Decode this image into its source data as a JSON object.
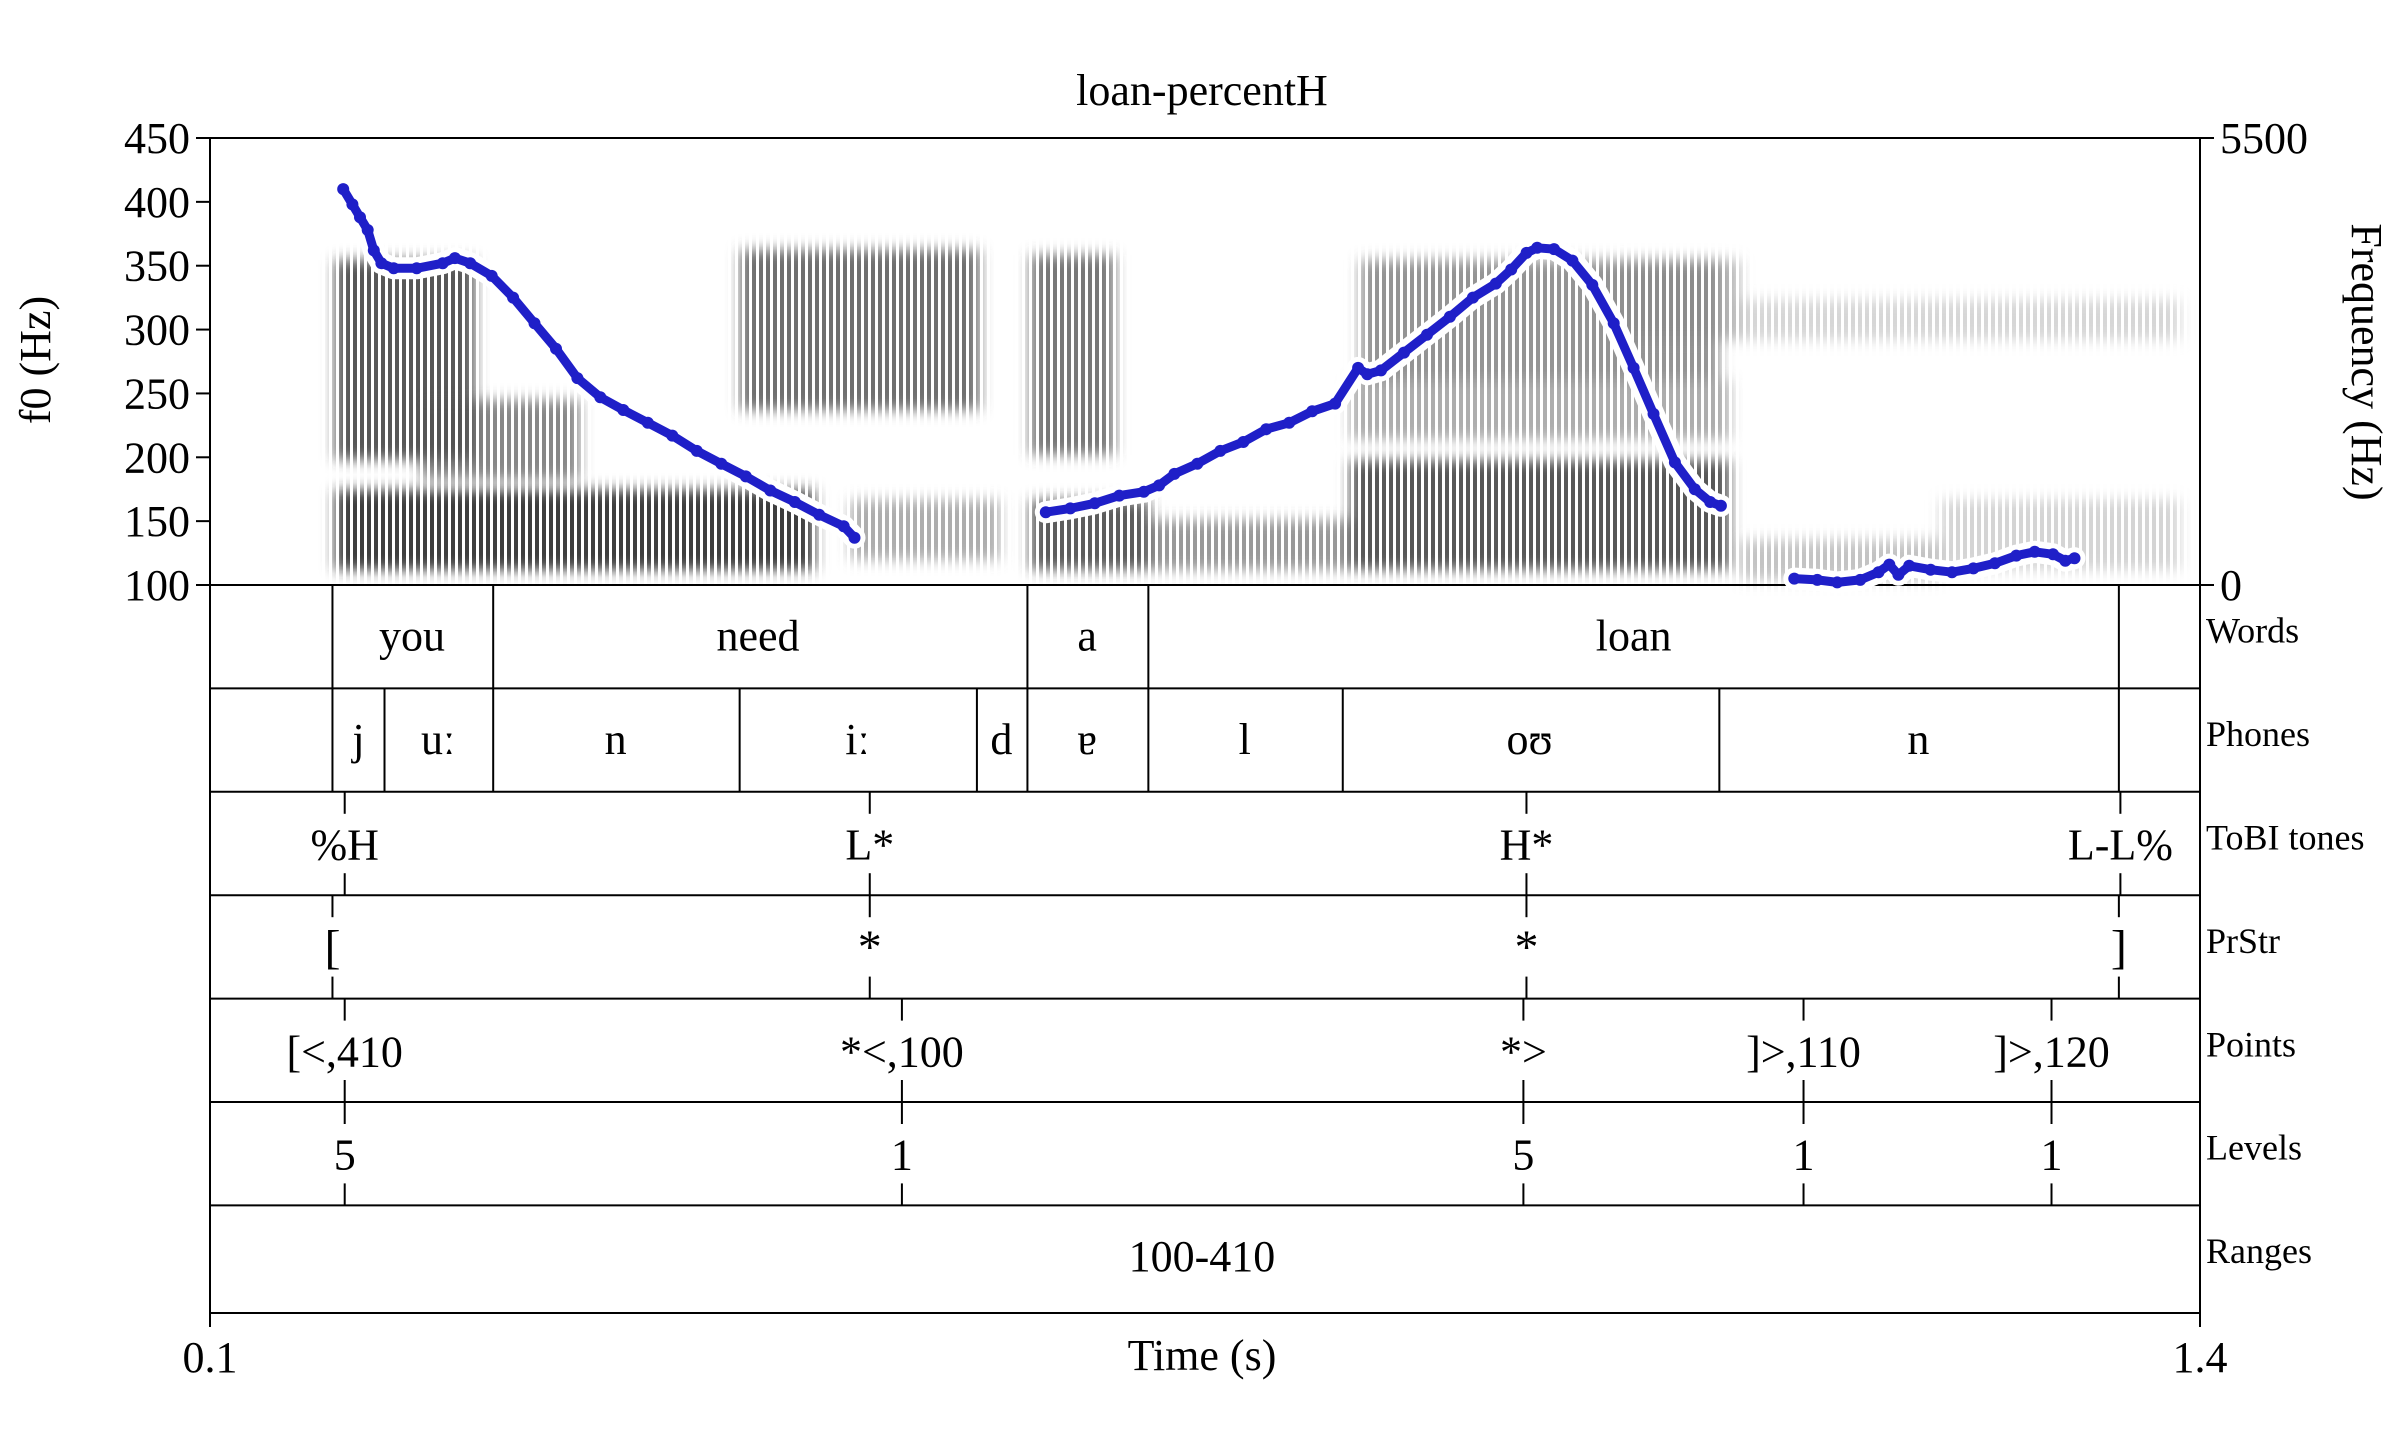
{
  "chart_data": {
    "type": "line",
    "title": "loan-percentH",
    "xlabel": "Time (s)",
    "ylabel_left": "f0 (Hz)",
    "ylabel_right": "Frequency (Hz)",
    "xlim": [
      0.1,
      1.4
    ],
    "xticks": [
      "0.1",
      "1.4"
    ],
    "ylim_f0": [
      100,
      450
    ],
    "yticks_f0": [
      100,
      150,
      200,
      250,
      300,
      350,
      400,
      450
    ],
    "ylim_freq": [
      0,
      5500
    ],
    "yticks_freq": [
      "0",
      "5500"
    ],
    "series": [
      {
        "name": "f0",
        "color": "#1f1fc8",
        "segments": [
          [
            [
              0.187,
              410
            ],
            [
              0.193,
              398
            ],
            [
              0.198,
              388
            ],
            [
              0.203,
              378
            ],
            [
              0.207,
              362
            ],
            [
              0.212,
              352
            ],
            [
              0.22,
              348
            ],
            [
              0.235,
              348
            ],
            [
              0.252,
              352
            ],
            [
              0.26,
              356
            ],
            [
              0.27,
              352
            ],
            [
              0.284,
              342
            ],
            [
              0.298,
              325
            ],
            [
              0.312,
              305
            ],
            [
              0.326,
              285
            ],
            [
              0.34,
              262
            ],
            [
              0.355,
              247
            ],
            [
              0.37,
              237
            ],
            [
              0.386,
              227
            ],
            [
              0.402,
              217
            ],
            [
              0.418,
              205
            ],
            [
              0.434,
              195
            ],
            [
              0.45,
              185
            ],
            [
              0.466,
              174
            ],
            [
              0.482,
              165
            ],
            [
              0.498,
              155
            ],
            [
              0.514,
              146
            ],
            [
              0.521,
              137
            ]
          ],
          [
            [
              0.646,
              157
            ],
            [
              0.662,
              160
            ],
            [
              0.678,
              164
            ],
            [
              0.694,
              170
            ],
            [
              0.71,
              173
            ],
            [
              0.72,
              178
            ],
            [
              0.73,
              187
            ],
            [
              0.745,
              195
            ],
            [
              0.76,
              205
            ],
            [
              0.775,
              212
            ],
            [
              0.79,
              222
            ],
            [
              0.805,
              227
            ],
            [
              0.82,
              236
            ],
            [
              0.835,
              242
            ],
            [
              0.85,
              270
            ],
            [
              0.856,
              265
            ],
            [
              0.865,
              268
            ],
            [
              0.88,
              282
            ],
            [
              0.895,
              296
            ],
            [
              0.91,
              310
            ],
            [
              0.925,
              325
            ],
            [
              0.94,
              336
            ],
            [
              0.95,
              347
            ],
            [
              0.96,
              360
            ],
            [
              0.967,
              364
            ],
            [
              0.978,
              363
            ],
            [
              0.99,
              354
            ],
            [
              1.003,
              335
            ],
            [
              1.017,
              305
            ],
            [
              1.03,
              270
            ],
            [
              1.043,
              234
            ],
            [
              1.057,
              196
            ],
            [
              1.07,
              175
            ],
            [
              1.08,
              165
            ],
            [
              1.087,
              162
            ]
          ],
          [
            [
              1.135,
              105
            ],
            [
              1.15,
              104
            ],
            [
              1.163,
              102
            ],
            [
              1.178,
              104
            ],
            [
              1.19,
              110
            ],
            [
              1.197,
              116
            ],
            [
              1.203,
              108
            ],
            [
              1.21,
              115
            ],
            [
              1.224,
              112
            ],
            [
              1.238,
              110
            ],
            [
              1.252,
              113
            ],
            [
              1.266,
              117
            ],
            [
              1.28,
              123
            ],
            [
              1.292,
              126
            ],
            [
              1.304,
              124
            ],
            [
              1.312,
              119
            ],
            [
              1.318,
              121
            ]
          ]
        ]
      }
    ],
    "tiers": [
      {
        "name": "Words",
        "kind": "interval",
        "bounds": [
          0.18,
          0.285,
          0.634,
          0.713,
          1.347
        ],
        "labels": [
          {
            "t": 0.232,
            "text": "you"
          },
          {
            "t": 0.458,
            "text": "need"
          },
          {
            "t": 0.673,
            "text": "a"
          },
          {
            "t": 1.03,
            "text": "loan"
          }
        ]
      },
      {
        "name": "Phones",
        "kind": "interval",
        "bounds": [
          0.18,
          0.214,
          0.285,
          0.446,
          0.601,
          0.634,
          0.713,
          0.84,
          1.086,
          1.347
        ],
        "labels": [
          {
            "t": 0.197,
            "text": "j"
          },
          {
            "t": 0.249,
            "text": "uː"
          },
          {
            "t": 0.365,
            "text": "n"
          },
          {
            "t": 0.523,
            "text": "iː"
          },
          {
            "t": 0.617,
            "text": "d"
          },
          {
            "t": 0.673,
            "text": "ɐ"
          },
          {
            "t": 0.776,
            "text": "l"
          },
          {
            "t": 0.962,
            "text": "oʊ"
          },
          {
            "t": 1.216,
            "text": "n"
          }
        ]
      },
      {
        "name": "ToBI tones",
        "kind": "point",
        "points": [
          {
            "t": 0.188,
            "text": "%H"
          },
          {
            "t": 0.531,
            "text": "L*"
          },
          {
            "t": 0.96,
            "text": "H*"
          },
          {
            "t": 1.348,
            "text": "L-L%"
          }
        ]
      },
      {
        "name": "PrStr",
        "kind": "point",
        "points": [
          {
            "t": 0.18,
            "text": "["
          },
          {
            "t": 0.531,
            "text": "*"
          },
          {
            "t": 0.96,
            "text": "*"
          },
          {
            "t": 1.347,
            "text": "]"
          }
        ]
      },
      {
        "name": "Points",
        "kind": "point",
        "points": [
          {
            "t": 0.188,
            "text": "[<,410"
          },
          {
            "t": 0.552,
            "text": "*<,100"
          },
          {
            "t": 0.958,
            "text": "*>"
          },
          {
            "t": 1.141,
            "text": "]>,110"
          },
          {
            "t": 1.303,
            "text": "]>,120"
          }
        ]
      },
      {
        "name": "Levels",
        "kind": "point",
        "points": [
          {
            "t": 0.188,
            "text": "5"
          },
          {
            "t": 0.552,
            "text": "1"
          },
          {
            "t": 0.958,
            "text": "5"
          },
          {
            "t": 1.141,
            "text": "1"
          },
          {
            "t": 1.303,
            "text": "1"
          }
        ]
      },
      {
        "name": "Ranges",
        "kind": "interval",
        "bounds": [],
        "labels": [
          {
            "t": 0.748,
            "text": "100-410"
          }
        ]
      }
    ]
  }
}
